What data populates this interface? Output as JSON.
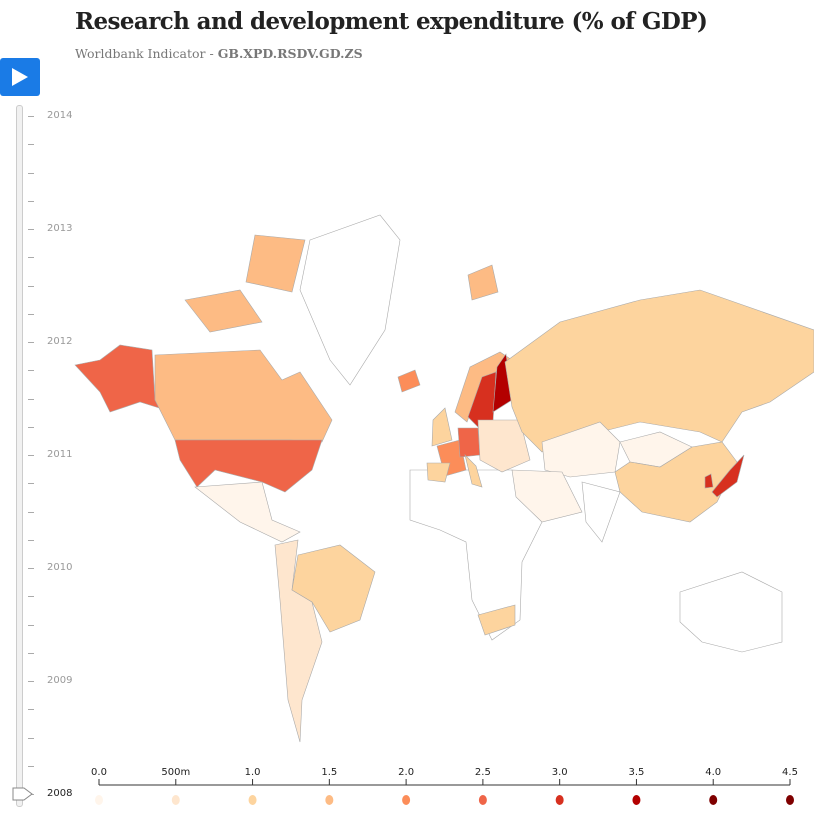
{
  "title": "Research and development expenditure (% of GDP)",
  "subtitle": {
    "prefix": "Worldbank Indicator - ",
    "code": "GB.XPD.RSDV.GD.ZS"
  },
  "player": {
    "play_icon": "play-icon",
    "years": [
      "2014",
      "2013",
      "2012",
      "2011",
      "2010",
      "2009",
      "2008"
    ],
    "selected_year": "2008"
  },
  "legend": {
    "ticks": [
      "0.0",
      "500m",
      "1.0",
      "1.5",
      "2.0",
      "2.5",
      "3.0",
      "3.5",
      "4.0",
      "4.5"
    ],
    "colors": [
      "#fff5eb",
      "#fee6ce",
      "#fdd49e",
      "#fdbb84",
      "#fc8d59",
      "#ef6548",
      "#d7301f",
      "#b30000",
      "#7f0000",
      "#7f0000"
    ]
  },
  "map_values": {
    "alaska": 2.5,
    "usa": 2.5,
    "canada": 1.5,
    "canada-islands": 1.5,
    "baffin": 1.5,
    "mexico": 0.0,
    "brazil": 1.0,
    "south-america": 0.5,
    "iceland": 2.0,
    "norway": 1.5,
    "sweden": 3.0,
    "finland": 3.5,
    "uk": 1.0,
    "france": 2.0,
    "germany": 2.5,
    "spain": 1.0,
    "italy": 1.0,
    "eastern-europe": 0.5,
    "russia": 1.0,
    "kazakhstan": 0.0,
    "mongolia": 0.0,
    "china": 1.0,
    "japan": 3.0,
    "korea": 3.0,
    "middle-east": 0.0,
    "south-africa": 1.0,
    "svalbard": 1.5
  }
}
